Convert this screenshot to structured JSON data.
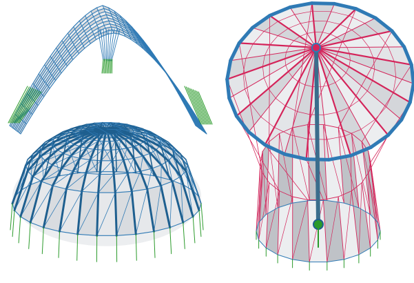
{
  "figure": {
    "panels": [
      {
        "id": "arch-shell"
      },
      {
        "id": "dome-shell"
      },
      {
        "id": "hyperbolic-funnel"
      }
    ]
  },
  "colors": {
    "background": "#ffffff",
    "structure_blue": "#2f7ab5",
    "structure_blue_dark": "#1e5f8f",
    "cable_red": "#d4245a",
    "support_green": "#2a9a2a",
    "membrane_light": "#eceef0",
    "membrane_mid": "#d4d6da",
    "membrane_dark": "#bfc2c7",
    "mast_blue": "#3a6d8c"
  }
}
